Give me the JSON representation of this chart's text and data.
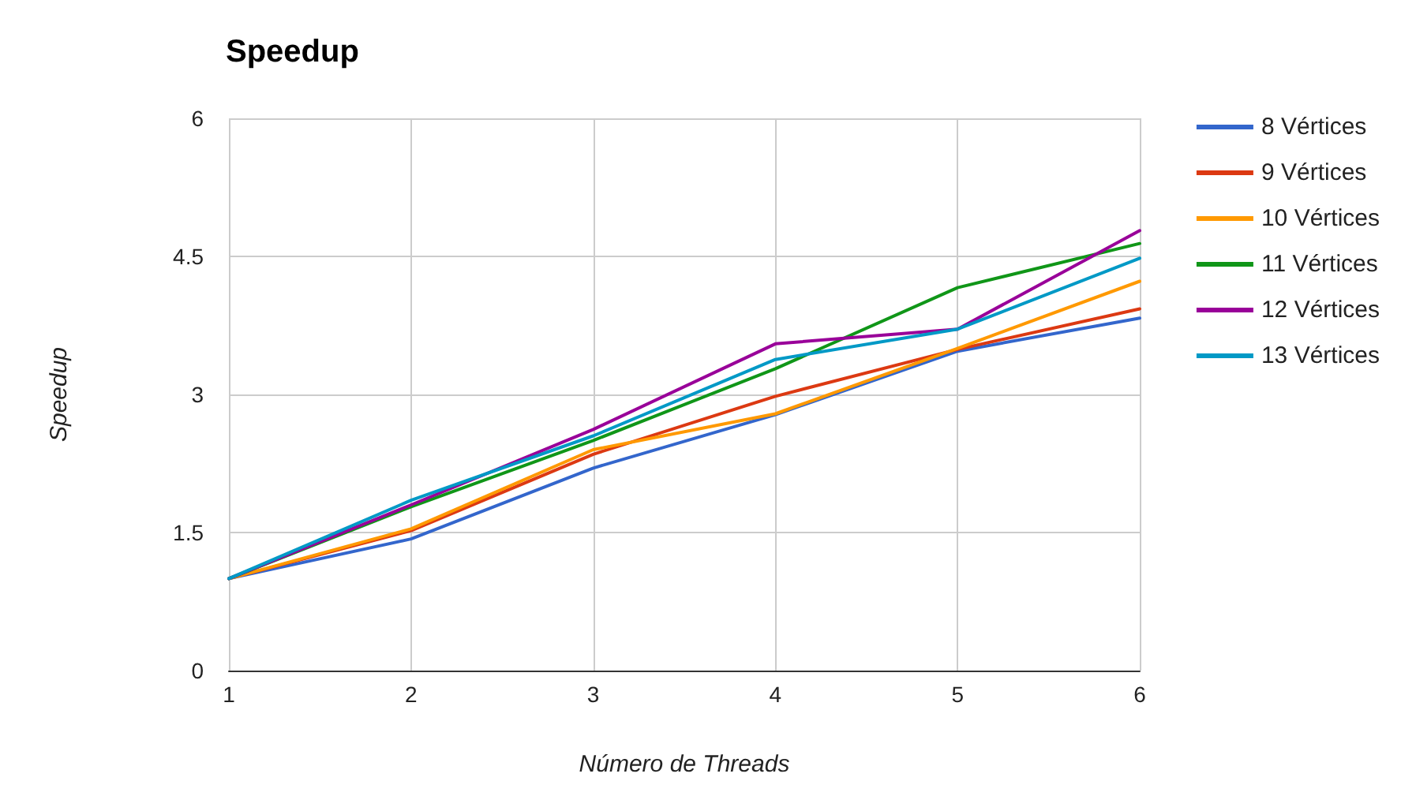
{
  "chart_data": {
    "type": "line",
    "title": "Speedup",
    "xlabel": "Número de Threads",
    "ylabel": "Speedup",
    "x": [
      1,
      2,
      3,
      4,
      5,
      6
    ],
    "xlim": [
      1,
      6
    ],
    "xticks": [
      1,
      2,
      3,
      4,
      5,
      6
    ],
    "ylim": [
      0,
      6
    ],
    "yticks": [
      0,
      1.5,
      3,
      4.5,
      6
    ],
    "grid": true,
    "legend": "right",
    "marker": "none",
    "line_style": "solid",
    "series": [
      {
        "name": "8 Vértices",
        "color": "#3366cc",
        "values": [
          1,
          1.43,
          2.2,
          2.78,
          3.47,
          3.83
        ]
      },
      {
        "name": "9 Vértices",
        "color": "#dc3912",
        "values": [
          1,
          1.52,
          2.35,
          2.98,
          3.49,
          3.93
        ]
      },
      {
        "name": "10 Vértices",
        "color": "#ff9900",
        "values": [
          1,
          1.54,
          2.4,
          2.79,
          3.5,
          4.23
        ]
      },
      {
        "name": "11 Vértices",
        "color": "#109618",
        "values": [
          1,
          1.78,
          2.5,
          3.28,
          4.16,
          4.64
        ]
      },
      {
        "name": "12 Vértices",
        "color": "#990099",
        "values": [
          1,
          1.8,
          2.62,
          3.55,
          3.71,
          4.78
        ]
      },
      {
        "name": "13 Vértices",
        "color": "#0099c6",
        "values": [
          1,
          1.85,
          2.55,
          3.38,
          3.71,
          4.48
        ]
      }
    ]
  }
}
